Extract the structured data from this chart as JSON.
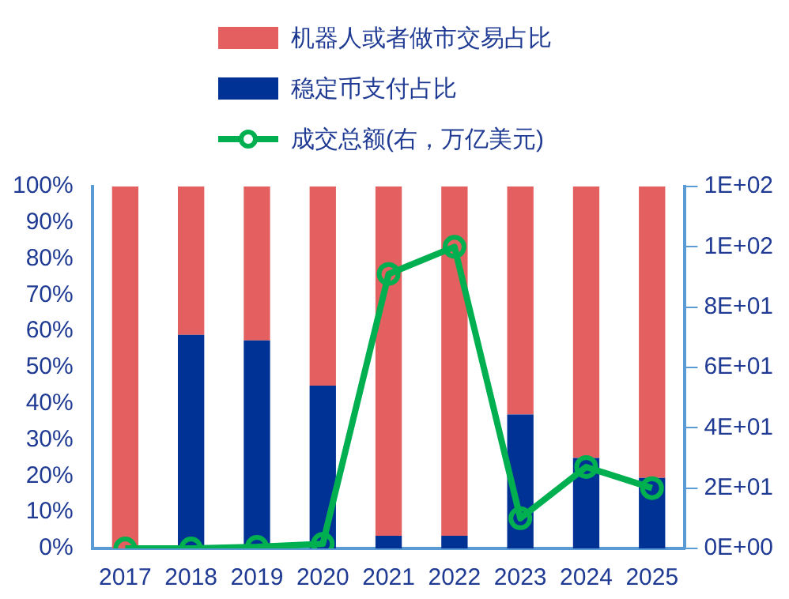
{
  "chart_data": {
    "type": "bar",
    "stacked": true,
    "categories": [
      "2017",
      "2018",
      "2019",
      "2020",
      "2021",
      "2022",
      "2023",
      "2024",
      "2025"
    ],
    "series": [
      {
        "name": "稳定币支付占比",
        "color": "#003296",
        "values": [
          null,
          59,
          57.5,
          45,
          3.5,
          3.5,
          37,
          25,
          19.5
        ]
      },
      {
        "name": "机器人或者做市交易占比",
        "color": "#e45f5f",
        "values": [
          100,
          41,
          42.5,
          55,
          96.5,
          96.5,
          63,
          75,
          80.5
        ]
      },
      {
        "name": "成交总额(右，万亿美元)",
        "type": "line",
        "axis": "y2",
        "color": "#00b050",
        "values": [
          0,
          0,
          0.5,
          1.5,
          91,
          100,
          10,
          27,
          20
        ]
      }
    ],
    "ylim": [
      0,
      100
    ],
    "yticks": [
      {
        "value": 0,
        "label": "0%"
      },
      {
        "value": 10,
        "label": "10%"
      },
      {
        "value": 20,
        "label": "20%"
      },
      {
        "value": 30,
        "label": "30%"
      },
      {
        "value": 40,
        "label": "40%"
      },
      {
        "value": 50,
        "label": "50%"
      },
      {
        "value": 60,
        "label": "60%"
      },
      {
        "value": 70,
        "label": "70%"
      },
      {
        "value": 80,
        "label": "80%"
      },
      {
        "value": 90,
        "label": "90%"
      },
      {
        "value": 100,
        "label": "100%"
      }
    ],
    "y2lim": [
      0,
      120
    ],
    "y2ticks": [
      {
        "value": 0,
        "label": "0E+00"
      },
      {
        "value": 20,
        "label": "2E+01"
      },
      {
        "value": 40,
        "label": "4E+01"
      },
      {
        "value": 60,
        "label": "6E+01"
      },
      {
        "value": 80,
        "label": "8E+01"
      },
      {
        "value": 100,
        "label": "1E+02"
      },
      {
        "value": 120,
        "label": "1E+02"
      }
    ],
    "legend": "top",
    "marker": "circle",
    "grid": false
  }
}
